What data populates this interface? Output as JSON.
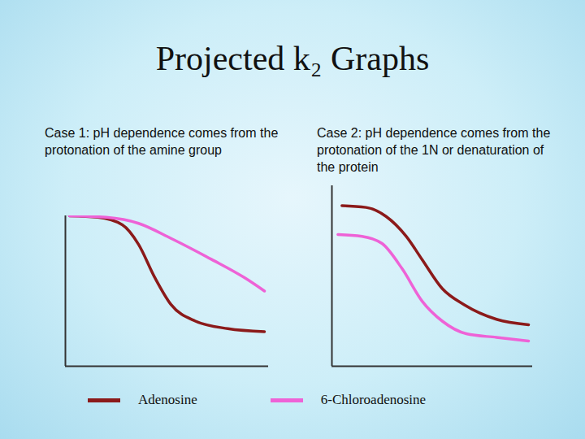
{
  "title": "Projected k₂ Graphs",
  "chart_data": [
    {
      "type": "line",
      "subtitle": "Case 1:  pH dependence comes from the protonation of the amine group",
      "xlim": [
        0,
        10
      ],
      "ylim": [
        0,
        10
      ],
      "tick_labels": false,
      "grid": false,
      "legend": "bottom",
      "series": [
        {
          "name": "Adenosine",
          "color": "#8b1a1a",
          "x": [
            0.2,
            1.6,
            2.8,
            3.6,
            4.4,
            5.2,
            6.4,
            8.0,
            9.8
          ],
          "values": [
            10.0,
            9.9,
            9.4,
            8.1,
            5.9,
            4.1,
            3.0,
            2.5,
            2.3
          ]
        },
        {
          "name": "6-Chloroadenosine",
          "color": "#ee62d6",
          "x": [
            0.2,
            2.0,
            3.6,
            5.2,
            7.2,
            8.8,
            9.8
          ],
          "values": [
            10.0,
            9.9,
            9.5,
            8.5,
            7.1,
            5.9,
            5.0
          ]
        }
      ]
    },
    {
      "type": "line",
      "subtitle": "Case 2: pH dependence comes from the protonation of the 1N or denaturation of the protein",
      "xlim": [
        0,
        10
      ],
      "ylim": [
        0,
        10
      ],
      "tick_labels": false,
      "grid": false,
      "legend": "bottom",
      "series": [
        {
          "name": "Adenosine",
          "color": "#8b1a1a",
          "x": [
            0.5,
            1.7,
            2.7,
            3.7,
            4.5,
            5.5,
            6.6,
            8.2,
            9.8
          ],
          "values": [
            8.9,
            8.8,
            8.3,
            7.2,
            5.9,
            4.3,
            3.4,
            2.6,
            2.3
          ]
        },
        {
          "name": "6-Chloroadenosine",
          "color": "#ee62d6",
          "x": [
            0.3,
            1.5,
            2.5,
            3.5,
            4.5,
            5.5,
            6.7,
            8.2,
            9.8
          ],
          "values": [
            7.3,
            7.2,
            6.8,
            5.4,
            3.6,
            2.5,
            1.8,
            1.6,
            1.4
          ]
        }
      ]
    }
  ]
}
